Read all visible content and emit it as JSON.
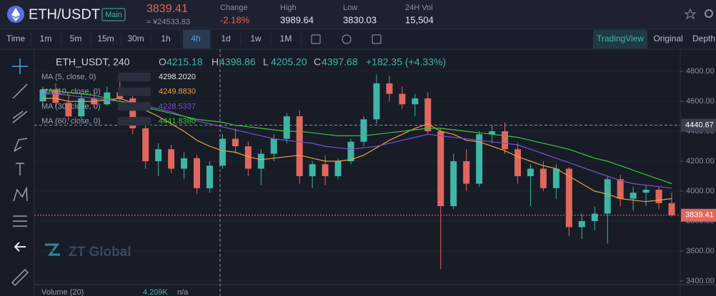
{
  "header": {
    "pair": "ETH/USDT",
    "badge": "Main",
    "price": "3839.41",
    "price_cny": "≈ ¥24533.83",
    "stats": [
      {
        "label": "Change",
        "value": "-2.18%"
      },
      {
        "label": "High",
        "value": "3989.64"
      },
      {
        "label": "Low",
        "value": "3830.03"
      },
      {
        "label": "24H Vol",
        "value": "15,504"
      }
    ]
  },
  "toolbar": {
    "intervals": [
      "Time",
      "1m",
      "5m",
      "15m",
      "30m",
      "1h",
      "4h",
      "1d",
      "1w",
      "1M"
    ],
    "active": "4h",
    "views": [
      "TradingView",
      "Original",
      "Depth"
    ],
    "active_view": "TradingView"
  },
  "legend": {
    "symbol": "ETH_USDT, 240",
    "ohlc": [
      {
        "key": "O",
        "value": "4215.18"
      },
      {
        "key": "H",
        "value": "4398.86"
      },
      {
        "key": "L",
        "value": "4205.20"
      },
      {
        "key": "C",
        "value": "4397.68"
      }
    ],
    "change": "+182.35 (+4.33%)"
  },
  "indicators": [
    {
      "label": "MA (5, close, 0)",
      "value": "4298.2020",
      "color": "#e6e6e6"
    },
    {
      "label": "MA (10, close, 0)",
      "value": "4249.8830",
      "color": "#e8a33d",
      "values": [
        4620,
        4620,
        4600,
        4600,
        4600,
        4610,
        4620,
        4590,
        4540,
        4500,
        4450,
        4400,
        4340,
        4300,
        4270,
        4260,
        4230,
        4210,
        4220,
        4230,
        4240,
        4220,
        4200,
        4200,
        4210,
        4240,
        4290,
        4340,
        4380,
        4420,
        4450,
        4400,
        4380,
        4340,
        4330,
        4300,
        4270,
        4230,
        4200,
        4170,
        4150,
        4100,
        4050,
        4000,
        3980,
        3950,
        3940,
        3930,
        3940,
        3950
      ]
    },
    {
      "label": "MA (30, close, 0)",
      "value": "4228.5337",
      "color": "#7b4fd6",
      "values": [
        4650,
        4650,
        4640,
        4630,
        4620,
        4610,
        4600,
        4590,
        4570,
        4550,
        4530,
        4500,
        4470,
        4450,
        4430,
        4410,
        4390,
        4370,
        4350,
        4340,
        4330,
        4320,
        4300,
        4290,
        4280,
        4290,
        4300,
        4320,
        4340,
        4360,
        4380,
        4370,
        4360,
        4350,
        4340,
        4330,
        4320,
        4310,
        4280,
        4250,
        4220,
        4190,
        4160,
        4130,
        4100,
        4070,
        4050,
        4040,
        4030,
        4020
      ]
    },
    {
      "label": "MA (60, close, 0)",
      "value": "4441.8380",
      "color": "#3cc43c",
      "values": [
        4680,
        4670,
        4660,
        4650,
        4640,
        4620,
        4600,
        4580,
        4560,
        4540,
        4520,
        4500,
        4480,
        4470,
        4460,
        4440,
        4430,
        4420,
        4410,
        4400,
        4400,
        4390,
        4380,
        4370,
        4370,
        4370,
        4380,
        4390,
        4400,
        4410,
        4420,
        4420,
        4410,
        4400,
        4390,
        4380,
        4370,
        4360,
        4340,
        4320,
        4300,
        4280,
        4250,
        4220,
        4200,
        4170,
        4140,
        4110,
        4080,
        4050
      ]
    }
  ],
  "chart_data": {
    "type": "candlestick",
    "up_color": "#3fb5a7",
    "down_color": "#e0675c",
    "open": [
      4600,
      4680,
      4590,
      4500,
      4620,
      4580,
      4660,
      4620,
      4420,
      4200,
      4280,
      4150,
      4220,
      4020,
      4170,
      4350,
      4300,
      4150,
      4250,
      4350,
      4500,
      4100,
      4180,
      4100,
      4200,
      4330,
      4480,
      4720,
      4650,
      4580,
      4620,
      4400,
      3900,
      4200,
      4050,
      4380,
      4400,
      4280,
      4100,
      4150,
      4020,
      4150,
      3760,
      3800,
      3850,
      4080,
      3950,
      3990,
      4010,
      3920
    ],
    "high": [
      4700,
      4720,
      4660,
      4650,
      4680,
      4700,
      4750,
      4640,
      4450,
      4320,
      4310,
      4260,
      4240,
      4200,
      4380,
      4420,
      4330,
      4280,
      4380,
      4520,
      4540,
      4200,
      4240,
      4220,
      4350,
      4500,
      4780,
      4770,
      4700,
      4650,
      4660,
      4420,
      4250,
      4280,
      4400,
      4440,
      4460,
      4320,
      4180,
      4200,
      4180,
      4160,
      3850,
      3900,
      4100,
      4110,
      4030,
      4040,
      4030,
      3990
    ],
    "low": [
      4580,
      4560,
      4470,
      4480,
      4560,
      4570,
      4600,
      4380,
      4150,
      4100,
      4120,
      4080,
      3980,
      3990,
      4150,
      4250,
      4100,
      4040,
      4200,
      4320,
      4050,
      4020,
      4040,
      4080,
      4180,
      4300,
      4450,
      4600,
      4550,
      4500,
      4380,
      3480,
      3880,
      4000,
      4030,
      4320,
      4250,
      4050,
      3900,
      4000,
      3950,
      3700,
      3680,
      3740,
      3650,
      3900,
      3870,
      3900,
      3880,
      3830
    ],
    "close": [
      4680,
      4590,
      4500,
      4620,
      4580,
      4660,
      4620,
      4420,
      4200,
      4280,
      4150,
      4220,
      4020,
      4170,
      4350,
      4300,
      4150,
      4250,
      4350,
      4500,
      4100,
      4180,
      4100,
      4200,
      4330,
      4480,
      4720,
      4650,
      4580,
      4620,
      4400,
      3900,
      4200,
      4050,
      4380,
      4400,
      4280,
      4100,
      4150,
      4020,
      4150,
      3760,
      3800,
      3850,
      4080,
      3950,
      3990,
      4010,
      3920,
      3839.41
    ],
    "ylim": [
      3381,
      4948
    ],
    "yticks": [
      {
        "value": 3400,
        "label": "3400.00"
      },
      {
        "value": 3600,
        "label": "3600.00"
      },
      {
        "value": 3800,
        "label": "3800.00"
      },
      {
        "value": 4000,
        "label": "4000.00"
      },
      {
        "value": 4200,
        "label": "4200.00"
      },
      {
        "value": 4400,
        "label": "4400.00"
      },
      {
        "value": 4600,
        "label": "4600.00"
      },
      {
        "value": 4800,
        "label": "4800.00"
      }
    ],
    "crosshair_price": 4440.67,
    "last_price": 3839.41
  },
  "volume": {
    "label": "Volume (20)",
    "value": "4.209K",
    "extra": "n/a"
  },
  "watermark": "ZT Global"
}
